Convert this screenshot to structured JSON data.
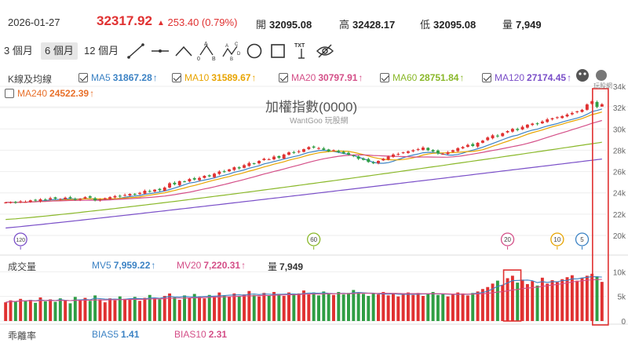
{
  "header": {
    "date": "2026-01-27",
    "price": "32317.92",
    "change_arrow": "▲",
    "change": "253.40 (0.79%)",
    "open_label": "開",
    "open": "32095.08",
    "high_label": "高",
    "high": "32428.17",
    "low_label": "低",
    "low": "32095.08",
    "volume_label": "量",
    "volume": "7,949"
  },
  "toolbar": {
    "ranges": [
      "3 個月",
      "6 個月",
      "12 個月"
    ],
    "active_range": "6 個月",
    "tools": [
      "line-tool-icon",
      "horizontal-line-tool-icon",
      "angle-tool-icon",
      "abc-pattern-tool-icon",
      "abcd-pattern-tool-icon",
      "circle-tool-icon",
      "rectangle-tool-icon",
      "text-tool-icon",
      "hide-drawings-icon"
    ],
    "tool_letters": {
      "a": "A",
      "b": "B",
      "c": "C",
      "d": "D",
      "zero": "0",
      "txt": "TXT"
    }
  },
  "kline": {
    "section_label": "K線及均線",
    "ma": [
      {
        "name": "MA5",
        "value": "31867.28",
        "arrow": "↑",
        "color": "#3b82c4",
        "checked": true
      },
      {
        "name": "MA10",
        "value": "31589.67",
        "arrow": "↑",
        "color": "#e8a400",
        "checked": true
      },
      {
        "name": "MA20",
        "value": "30797.91",
        "arrow": "↑",
        "color": "#d44f88",
        "checked": true
      },
      {
        "name": "MA60",
        "value": "28751.84",
        "arrow": "↑",
        "color": "#8ab82a",
        "checked": true
      },
      {
        "name": "MA120",
        "value": "27174.45",
        "arrow": "↑",
        "color": "#7a4fc8",
        "checked": true
      },
      {
        "name": "MA240",
        "value": "24522.39",
        "arrow": "↑",
        "color": "#e8702a",
        "checked": false
      }
    ],
    "title": "加權指數(0000)",
    "subtitle": "WantGoo 玩股網",
    "logo_text": "玩股網"
  },
  "volume_panel": {
    "section_label": "成交量",
    "mv": [
      {
        "name": "MV5",
        "value": "7,959.22",
        "arrow": "↑",
        "color": "#3b82c4"
      },
      {
        "name": "MV20",
        "value": "7,220.31",
        "arrow": "↑",
        "color": "#d44f88"
      }
    ],
    "last_label": "量",
    "last_value": "7,949"
  },
  "bias_panel": {
    "section_label": "乖離率",
    "items": [
      {
        "name": "BIAS5",
        "value": "1.41",
        "color": "#3b82c4"
      },
      {
        "name": "BIAS10",
        "value": "2.31",
        "color": "#d44f88"
      }
    ]
  },
  "markers": [
    {
      "label": "120",
      "color": "#7a4fc8",
      "index": 3
    },
    {
      "label": "60",
      "color": "#8ab82a",
      "index": 62
    },
    {
      "label": "20",
      "color": "#d44f88",
      "index": 101
    },
    {
      "label": "10",
      "color": "#e8a400",
      "index": 111
    },
    {
      "label": "5",
      "color": "#3b82c4",
      "index": 116
    }
  ],
  "colors": {
    "up": "#e03131",
    "down": "#2f9e44",
    "grid": "#eeeeee",
    "highlight": "#e03131"
  },
  "chart_data": [
    {
      "type": "candlestick",
      "title": "加權指數(0000)",
      "y_ticks": [
        "34k",
        "32k",
        "30k",
        "28k",
        "26k",
        "24k",
        "22k",
        "20k"
      ],
      "ylim": [
        20000,
        34000
      ],
      "series": [
        {
          "name": "Close",
          "values": [
            23100,
            23120,
            23080,
            23200,
            23150,
            23300,
            23280,
            23400,
            23350,
            23500,
            23450,
            23420,
            23550,
            23500,
            23380,
            23450,
            23600,
            23550,
            23300,
            23350,
            23500,
            23600,
            23700,
            23650,
            23800,
            23900,
            23850,
            24000,
            24200,
            24100,
            24300,
            24250,
            24500,
            24900,
            24800,
            25100,
            25050,
            25300,
            25250,
            25400,
            25600,
            25550,
            25800,
            26000,
            25950,
            26200,
            26400,
            26300,
            26600,
            26800,
            26750,
            27000,
            27200,
            27150,
            27400,
            27300,
            27600,
            27800,
            27750,
            27900,
            28100,
            28300,
            28250,
            28200,
            28050,
            27900,
            28000,
            27850,
            27700,
            27600,
            27450,
            27200,
            27100,
            26900,
            26800,
            27000,
            27200,
            27400,
            27600,
            27650,
            27800,
            27900,
            28000,
            28100,
            28250,
            28000,
            27900,
            27700,
            27650,
            27800,
            28000,
            28200,
            28300,
            28500,
            28400,
            28700,
            28900,
            29200,
            29400,
            29300,
            29600,
            29800,
            30000,
            29900,
            30200,
            30400,
            30500,
            30450,
            30700,
            30900,
            31000,
            31100,
            31200,
            31350,
            31500,
            31650,
            31800,
            32300,
            32600,
            32064.52,
            32317.92
          ]
        },
        {
          "name": "MA5",
          "values": [
            31867.28
          ]
        },
        {
          "name": "MA10",
          "values": [
            31589.67
          ]
        },
        {
          "name": "MA20",
          "values": [
            30797.91
          ]
        },
        {
          "name": "MA60",
          "values": [
            28751.84
          ]
        },
        {
          "name": "MA120",
          "values": [
            27174.45
          ]
        }
      ],
      "last_candle": {
        "open": 32095.08,
        "high": 32428.17,
        "low": 32095.08,
        "close": 32317.92
      }
    },
    {
      "type": "bar",
      "title": "成交量",
      "y_ticks": [
        "10k",
        "5k",
        "0"
      ],
      "ylim": [
        0,
        11000
      ],
      "series": [
        {
          "name": "Volume",
          "values": [
            3800,
            4200,
            3900,
            4500,
            4100,
            4300,
            3700,
            4800,
            4000,
            4400,
            3900,
            4600,
            4200,
            3600,
            4900,
            4300,
            4700,
            4100,
            5200,
            4400,
            3800,
            4600,
            4200,
            5000,
            4500,
            4300,
            4900,
            4100,
            4700,
            5300,
            4600,
            4400,
            5100,
            5600,
            4800,
            4300,
            5200,
            4700,
            5500,
            4900,
            4600,
            5300,
            5000,
            5800,
            5200,
            4900,
            5600,
            5100,
            5400,
            6100,
            5300,
            5000,
            5700,
            5200,
            5900,
            5400,
            5100,
            5800,
            5300,
            5600,
            6200,
            5500,
            5800,
            5200,
            6000,
            5600,
            5300,
            5900,
            5400,
            5700,
            6300,
            5800,
            5500,
            5100,
            5700,
            5400,
            5900,
            5200,
            5600,
            5000,
            5500,
            5800,
            5300,
            5700,
            5100,
            5600,
            5900,
            5300,
            5500,
            5000,
            5400,
            5800,
            5600,
            5200,
            5700,
            6000,
            6500,
            6900,
            7600,
            8200,
            7300,
            8700,
            9200,
            7800,
            8400,
            7500,
            8100,
            7200,
            8800,
            7600,
            8300,
            7900,
            8500,
            8900,
            9300,
            8200,
            8800,
            9200,
            9600,
            9100,
            7949
          ]
        },
        {
          "name": "MV5",
          "values": [
            7959.22
          ]
        },
        {
          "name": "MV20",
          "values": [
            7220.31
          ]
        }
      ]
    }
  ]
}
